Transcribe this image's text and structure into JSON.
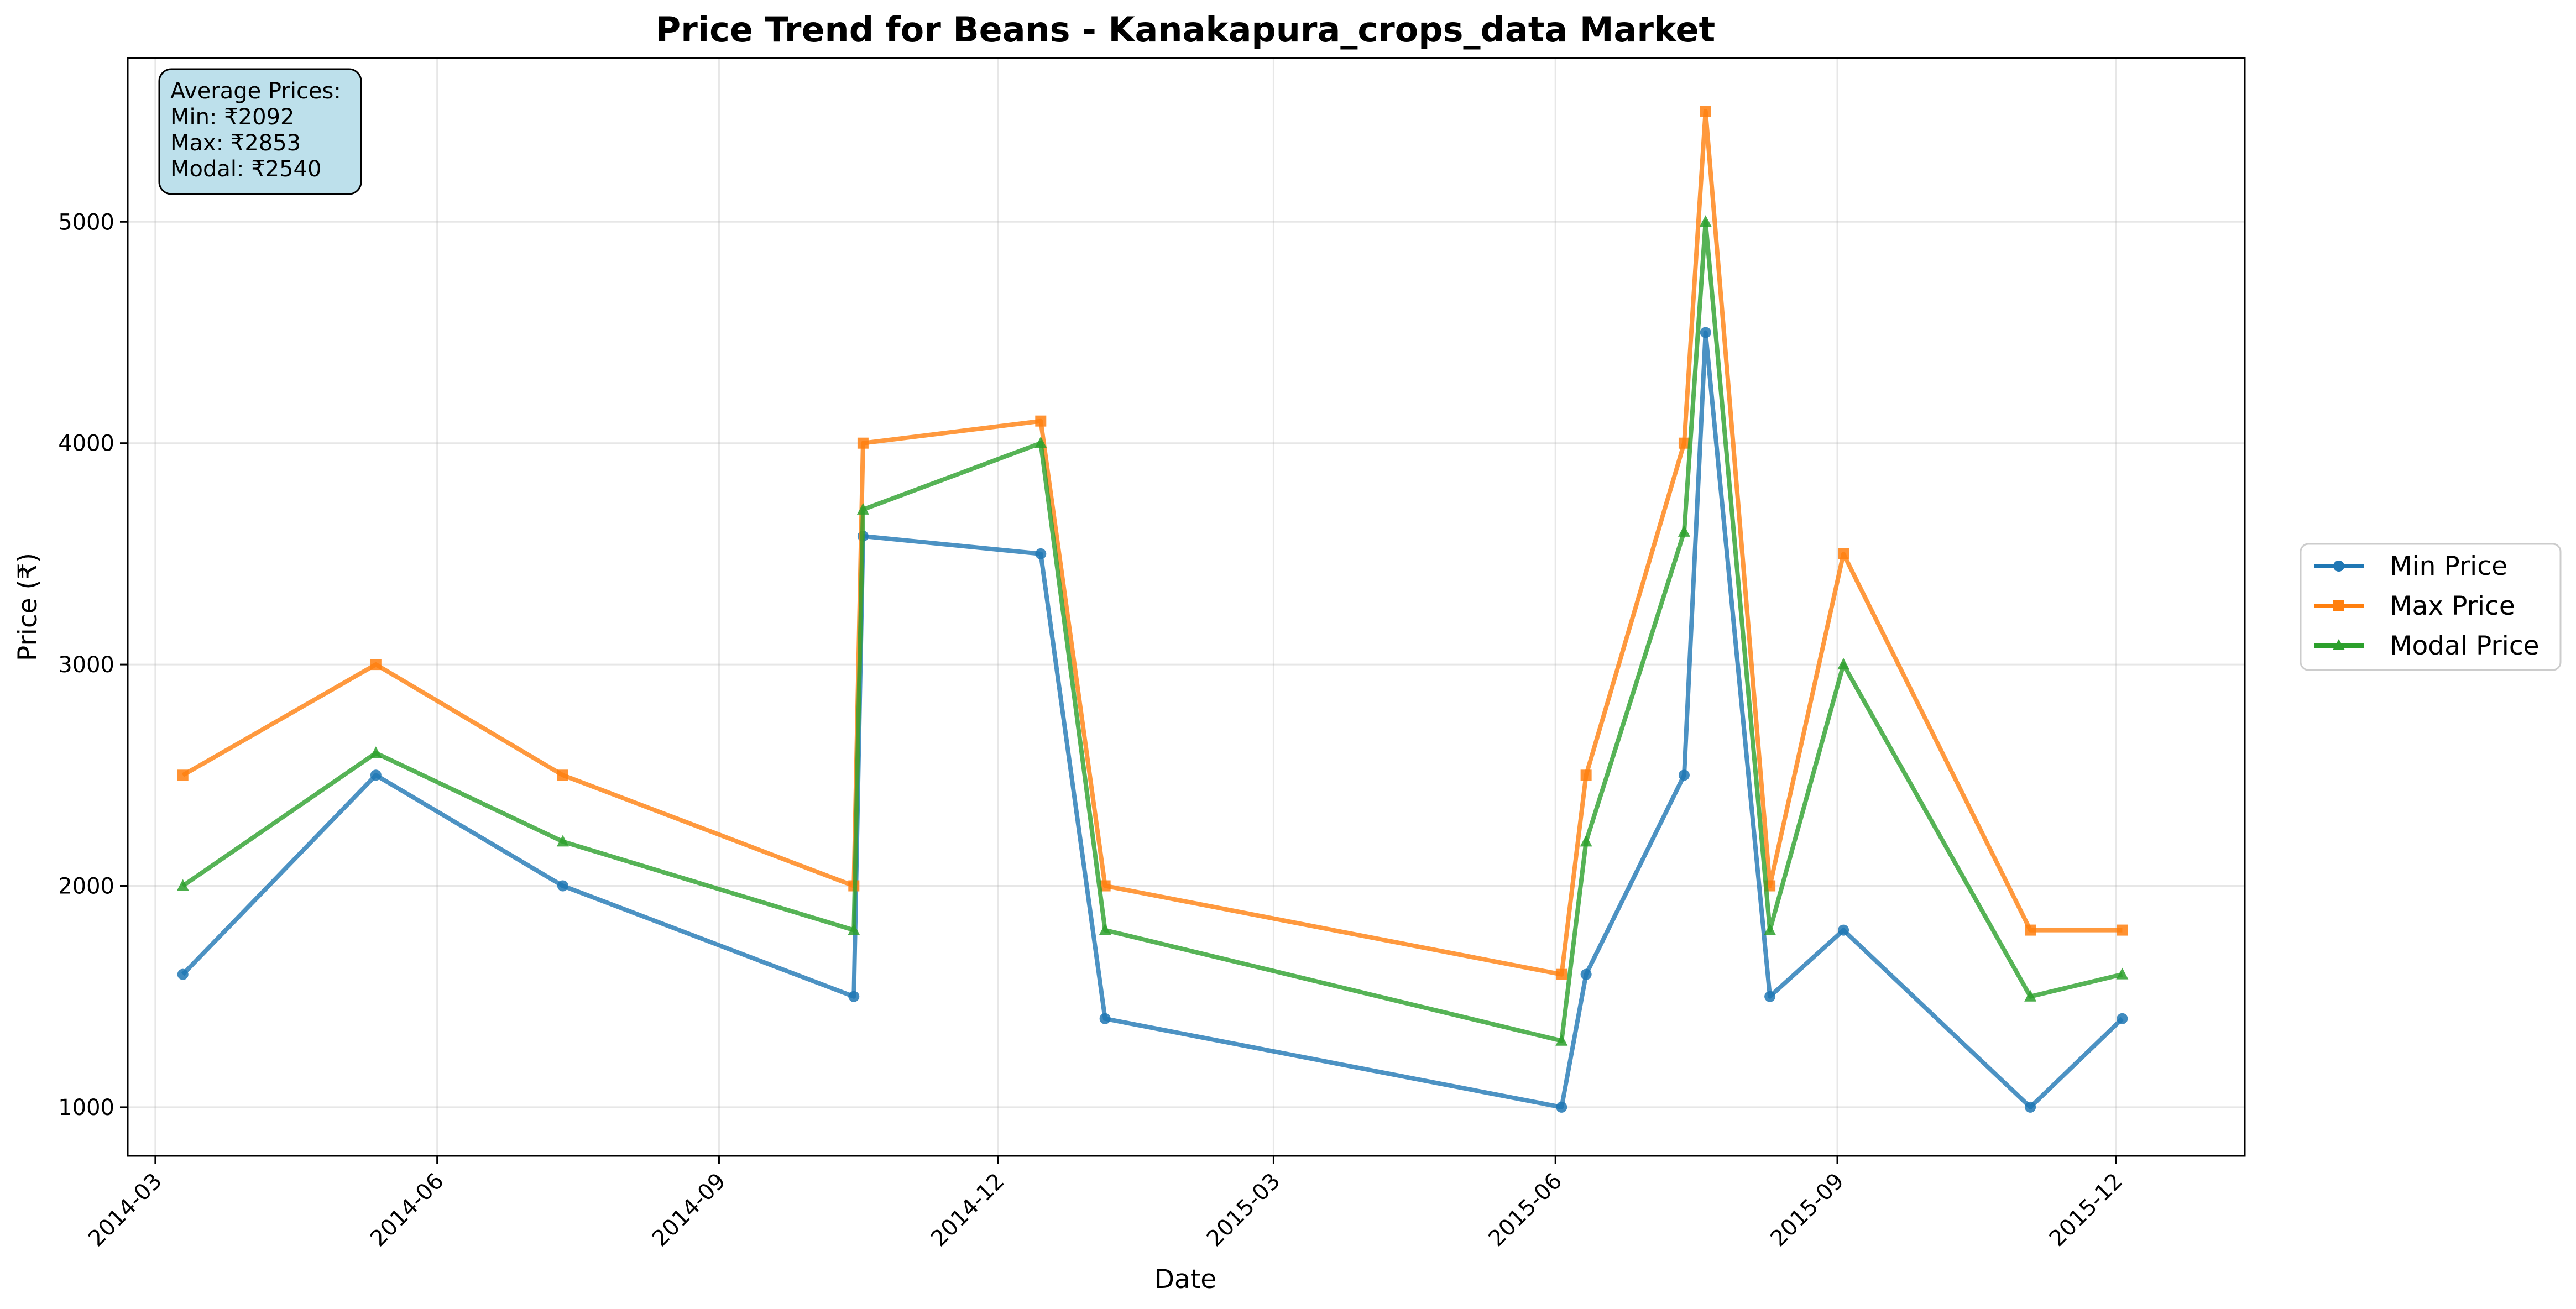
{
  "chart_data": {
    "type": "line",
    "title": "Price Trend for Beans - Kanakapura_crops_data Market",
    "xlabel": "Date",
    "ylabel": "Price (₹)",
    "x_tick_labels": [
      "2014-03",
      "2014-06",
      "2014-09",
      "2014-12",
      "2015-03",
      "2015-06",
      "2015-09",
      "2015-12"
    ],
    "y_tick_labels": [
      "1000",
      "2000",
      "3000",
      "4000",
      "5000"
    ],
    "x_range": [
      "2014-02-20",
      "2016-01-12"
    ],
    "ylim": [
      780,
      5740
    ],
    "grid": true,
    "legend_position": "outside-right",
    "x": [
      "2014-03-10",
      "2014-05-12",
      "2014-07-12",
      "2014-10-15",
      "2014-10-18",
      "2014-12-15",
      "2015-01-05",
      "2015-06-03",
      "2015-06-11",
      "2015-07-13",
      "2015-07-20",
      "2015-08-10",
      "2015-09-03",
      "2015-11-03",
      "2015-12-03"
    ],
    "series": [
      {
        "name": "Min Price",
        "color": "#1f77b4",
        "marker": "circle",
        "values": [
          1600,
          2500,
          2000,
          1500,
          3580,
          3500,
          1400,
          1000,
          1600,
          2500,
          4500,
          1500,
          1800,
          1000,
          1400
        ]
      },
      {
        "name": "Max Price",
        "color": "#ff7f0e",
        "marker": "square",
        "values": [
          2500,
          3000,
          2500,
          2000,
          4000,
          4100,
          2000,
          1600,
          2500,
          4000,
          5500,
          2000,
          3500,
          1800,
          1800
        ]
      },
      {
        "name": "Modal Price",
        "color": "#2ca02c",
        "marker": "triangle",
        "values": [
          2000,
          2600,
          2200,
          1800,
          3700,
          4000,
          1800,
          1300,
          2200,
          3600,
          5000,
          1800,
          3000,
          1500,
          1600
        ]
      }
    ],
    "annotation": {
      "lines": [
        "Average Prices:",
        "Min: ₹2092",
        "Max: ₹2853",
        "Modal: ₹2540"
      ],
      "background": "#add8e6"
    }
  }
}
